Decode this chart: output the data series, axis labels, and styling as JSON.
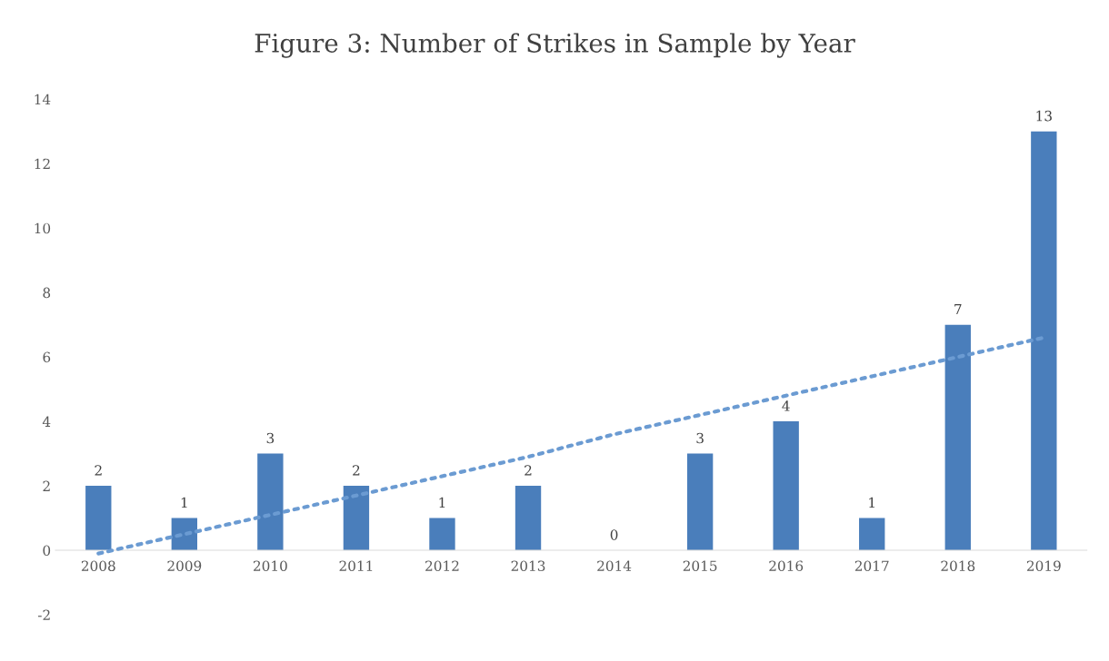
{
  "chart_data": {
    "type": "bar",
    "title": "Figure 3: Number of Strikes in Sample by Year",
    "categories": [
      "2008",
      "2009",
      "2010",
      "2011",
      "2012",
      "2013",
      "2014",
      "2015",
      "2016",
      "2017",
      "2018",
      "2019"
    ],
    "series": [
      {
        "color": "#4a7ebb",
        "values": [
          2,
          1,
          3,
          2,
          1,
          2,
          0,
          3,
          4,
          1,
          7,
          13
        ],
        "value_labels": [
          "2",
          "1",
          "3",
          "2",
          "1",
          "2",
          "0",
          "3",
          "4",
          "1",
          "7",
          "13"
        ]
      },
      {
        "type": "line",
        "color": "#6b9bd2",
        "line_style": "dotted",
        "values": [
          -0.1,
          0.5,
          1.1,
          1.7,
          2.3,
          2.9,
          3.6,
          4.2,
          4.8,
          5.4,
          6.0,
          6.6
        ]
      }
    ],
    "ylim": [
      -2,
      14
    ],
    "yticks": [
      -2,
      0,
      2,
      4,
      6,
      8,
      10,
      12,
      14
    ],
    "grid": false,
    "legend": false
  }
}
